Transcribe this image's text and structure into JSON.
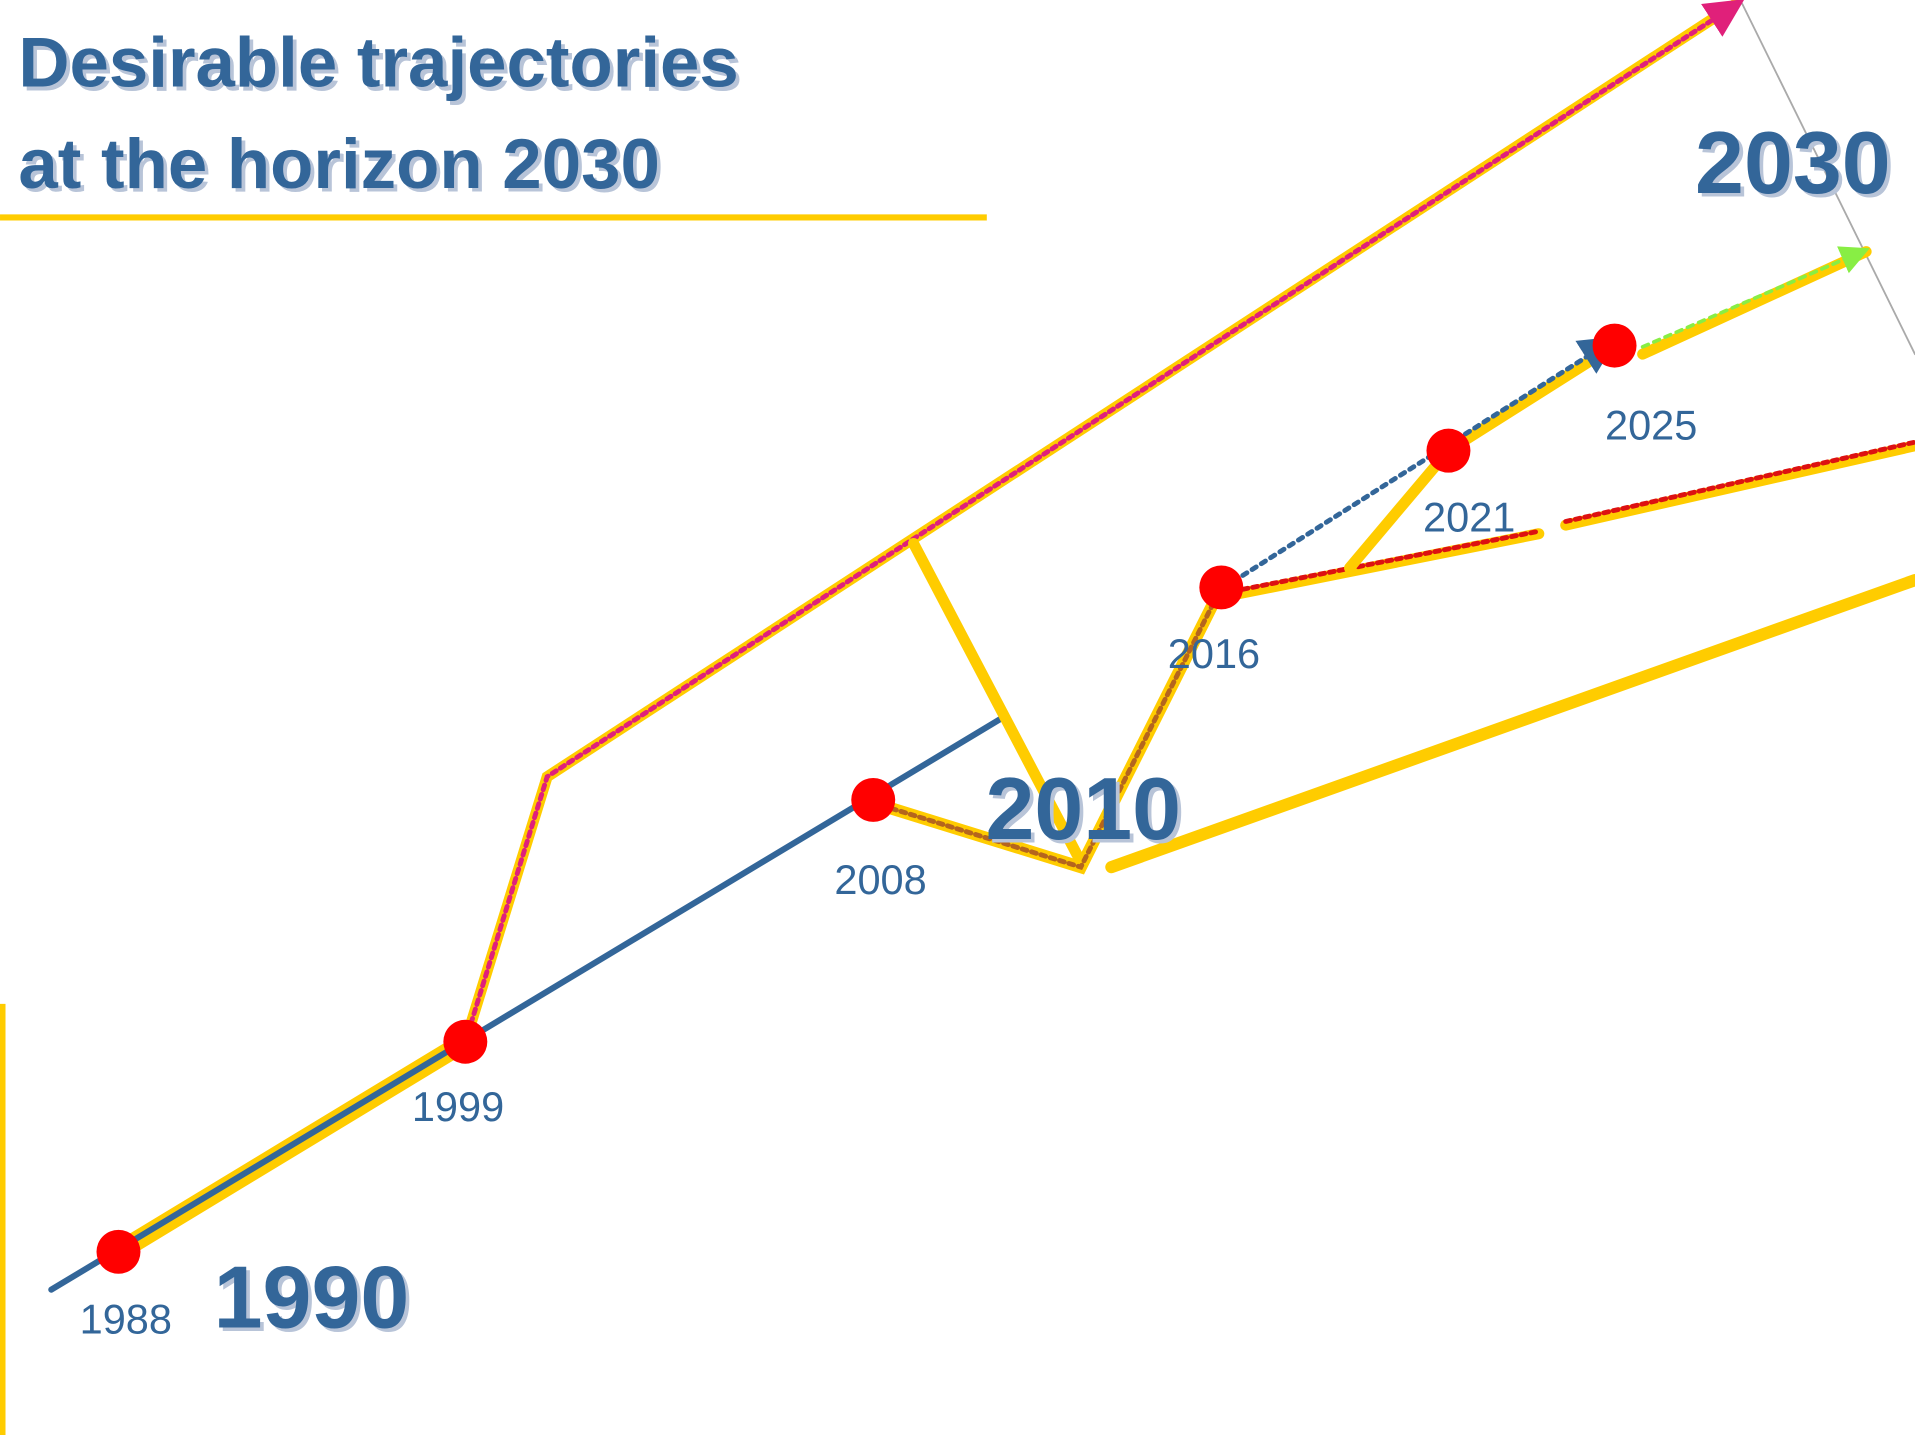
{
  "title": {
    "line1": "Desirable trajectories",
    "line2": "at the horizon 2030"
  },
  "milestones": [
    "1988",
    "1999",
    "2008",
    "2016",
    "2021",
    "2025"
  ],
  "horizons": [
    "1990",
    "2010",
    "2030"
  ]
}
